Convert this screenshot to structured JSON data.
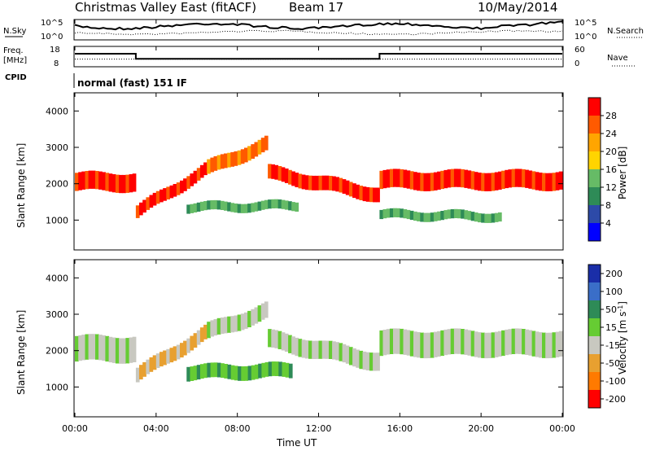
{
  "header": {
    "site": "Christmas Valley East (fitACF)",
    "beam": "Beam 17",
    "date": "10/May/2014"
  },
  "noise_panel": {
    "left_label": "N.Sky",
    "right_label": "N.Search",
    "left_ticks": [
      "10^5",
      "10^0"
    ],
    "right_ticks": [
      "10^5",
      "10^0"
    ]
  },
  "freq_panel": {
    "left_label_1": "Freq.",
    "left_label_2": "[MHz]",
    "right_label": "Nave",
    "left_ticks": [
      "18",
      "8"
    ],
    "right_ticks": [
      "60",
      "0"
    ],
    "freq_segments": [
      {
        "start_h": 0,
        "end_h": 3,
        "mhz": 14.5
      },
      {
        "start_h": 3,
        "end_h": 15,
        "mhz": 11.8
      },
      {
        "start_h": 15,
        "end_h": 24,
        "mhz": 14.5
      }
    ],
    "nave_level": 22
  },
  "cpid": {
    "label": "CPID",
    "mode": "normal (fast) 151 IF"
  },
  "colors": {
    "power": [
      "#0000ff",
      "#2d4aa8",
      "#2e8b57",
      "#66bb66",
      "#ffd400",
      "#ffa500",
      "#ff5a00",
      "#ff0000"
    ],
    "velocity": [
      "#1a2ea8",
      "#3a6ec8",
      "#2e8b57",
      "#66cc33",
      "#c8c8c0",
      "#e8a030",
      "#ff7a00",
      "#ff0000"
    ]
  },
  "chart_data": [
    {
      "type": "heatmap",
      "name": "Power",
      "ylabel": "Slant Range [km]",
      "ylim": [
        180,
        4500
      ],
      "yticks": [
        "1000",
        "2000",
        "3000",
        "4000"
      ],
      "colorbar_label": "Power [dB]",
      "colorbar_ticks": [
        "4",
        "8",
        "12",
        "16",
        "20",
        "24",
        "28"
      ],
      "bands": [
        {
          "start_h": 0.0,
          "end_h": 3.0,
          "range_start": 2050,
          "range_end": 2050,
          "width": 500,
          "color_index": 7
        },
        {
          "start_h": 3.0,
          "end_h": 6.5,
          "range_start": 1200,
          "range_end": 2400,
          "width": 350,
          "color_index": 7
        },
        {
          "start_h": 6.5,
          "end_h": 9.5,
          "range_start": 2400,
          "range_end": 3100,
          "width": 400,
          "color_index": 6
        },
        {
          "start_h": 9.5,
          "end_h": 15.0,
          "range_start": 2300,
          "range_end": 1700,
          "width": 400,
          "color_index": 7
        },
        {
          "start_h": 15.0,
          "end_h": 24.0,
          "range_start": 2100,
          "range_end": 2100,
          "width": 500,
          "color_index": 7
        },
        {
          "start_h": 5.5,
          "end_h": 11.0,
          "range_start": 1350,
          "range_end": 1400,
          "width": 250,
          "color_index": 3
        },
        {
          "start_h": 15.0,
          "end_h": 21.0,
          "range_start": 1150,
          "range_end": 1100,
          "width": 250,
          "color_index": 3
        }
      ]
    },
    {
      "type": "heatmap",
      "name": "Velocity",
      "ylabel": "Slant Range [km]",
      "ylim": [
        180,
        4500
      ],
      "yticks": [
        "1000",
        "2000",
        "3000",
        "4000"
      ],
      "colorbar_label": "Velocity [m s",
      "colorbar_label_sup": "-1",
      "colorbar_ticks": [
        "200",
        "100",
        "50",
        "15",
        "-15",
        "-50",
        "-100",
        "-200"
      ],
      "bands": [
        {
          "start_h": 0.0,
          "end_h": 3.0,
          "range_start": 2050,
          "range_end": 2050,
          "width": 700,
          "color_index": 4
        },
        {
          "start_h": 3.0,
          "end_h": 6.5,
          "range_start": 1300,
          "range_end": 2500,
          "width": 400,
          "color_index": 5
        },
        {
          "start_h": 6.5,
          "end_h": 9.5,
          "range_start": 2500,
          "range_end": 3100,
          "width": 450,
          "color_index": 4
        },
        {
          "start_h": 9.5,
          "end_h": 15.0,
          "range_start": 2300,
          "range_end": 1700,
          "width": 500,
          "color_index": 4
        },
        {
          "start_h": 15.0,
          "end_h": 24.0,
          "range_start": 2200,
          "range_end": 2200,
          "width": 700,
          "color_index": 4
        },
        {
          "start_h": 5.5,
          "end_h": 10.7,
          "range_start": 1400,
          "range_end": 1450,
          "width": 400,
          "color_index": 3
        }
      ]
    }
  ],
  "x_axis": {
    "label": "Time UT",
    "ticks": [
      "00:00",
      "04:00",
      "08:00",
      "12:00",
      "16:00",
      "20:00",
      "00:00"
    ]
  }
}
